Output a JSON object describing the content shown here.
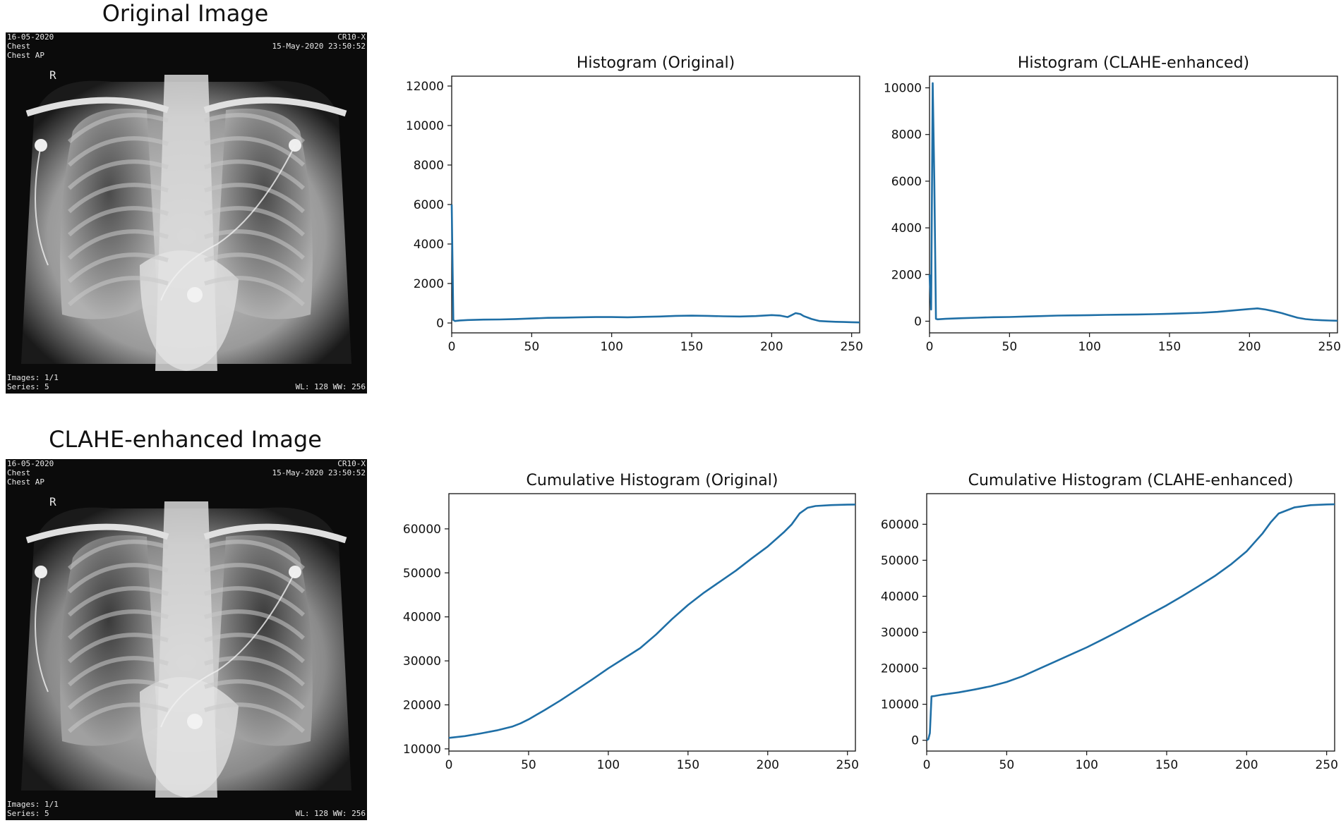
{
  "images": [
    {
      "title": "Original Image",
      "overlay": {
        "date": "16-05-2020",
        "study": "Chest",
        "view": "Chest AP",
        "device": "CR10-X",
        "datetime": "15-May-2020 23:50:52",
        "marker": "R",
        "images": "Images: 1/1",
        "series": "Series: 5",
        "window": "WL: 128 WW: 256"
      }
    },
    {
      "title": "CLAHE-enhanced Image",
      "overlay": {
        "date": "16-05-2020",
        "study": "Chest",
        "view": "Chest AP",
        "device": "CR10-X",
        "datetime": "15-May-2020 23:50:52",
        "marker": "R",
        "images": "Images: 1/1",
        "series": "Series: 5",
        "window": "WL: 128 WW: 256"
      }
    }
  ],
  "chart_data": [
    {
      "id": "hist-original",
      "type": "line",
      "title": "Histogram (Original)",
      "xlabel": "",
      "ylabel": "",
      "xlim": [
        0,
        255
      ],
      "ylim": [
        -500,
        12500
      ],
      "xticks": [
        0,
        50,
        100,
        150,
        200,
        250
      ],
      "yticks": [
        0,
        2000,
        4000,
        6000,
        8000,
        10000,
        12000
      ],
      "grid": false,
      "color": "#1f6fa6",
      "x": [
        0,
        1,
        2,
        5,
        10,
        20,
        30,
        40,
        50,
        60,
        70,
        80,
        90,
        100,
        110,
        120,
        130,
        140,
        150,
        160,
        170,
        180,
        190,
        200,
        205,
        210,
        212,
        215,
        218,
        220,
        225,
        230,
        235,
        240,
        245,
        250,
        255
      ],
      "y": [
        6000,
        150,
        100,
        130,
        150,
        170,
        180,
        200,
        230,
        260,
        270,
        290,
        300,
        300,
        290,
        310,
        330,
        360,
        370,
        360,
        340,
        330,
        350,
        400,
        380,
        300,
        380,
        500,
        450,
        350,
        200,
        100,
        80,
        60,
        50,
        40,
        30
      ]
    },
    {
      "id": "hist-clahe",
      "type": "line",
      "title": "Histogram (CLAHE-enhanced)",
      "xlabel": "",
      "ylabel": "",
      "xlim": [
        0,
        255
      ],
      "ylim": [
        -500,
        10500
      ],
      "xticks": [
        0,
        50,
        100,
        150,
        200,
        250
      ],
      "yticks": [
        0,
        2000,
        4000,
        6000,
        8000,
        10000
      ],
      "grid": false,
      "color": "#1f6fa6",
      "x": [
        0,
        1,
        2,
        3,
        4,
        5,
        10,
        20,
        30,
        40,
        50,
        60,
        70,
        80,
        90,
        100,
        110,
        120,
        130,
        140,
        150,
        160,
        170,
        180,
        190,
        200,
        205,
        210,
        215,
        220,
        225,
        230,
        235,
        240,
        245,
        250,
        255
      ],
      "y": [
        2000,
        500,
        10200,
        6000,
        100,
        80,
        100,
        130,
        150,
        170,
        180,
        200,
        220,
        240,
        250,
        260,
        270,
        280,
        290,
        300,
        320,
        340,
        360,
        400,
        460,
        520,
        550,
        500,
        430,
        350,
        250,
        150,
        90,
        60,
        40,
        30,
        20
      ]
    },
    {
      "id": "cum-original",
      "type": "line",
      "title": "Cumulative Histogram (Original)",
      "xlabel": "",
      "ylabel": "",
      "xlim": [
        0,
        255
      ],
      "ylim": [
        9500,
        68000
      ],
      "xticks": [
        0,
        50,
        100,
        150,
        200,
        250
      ],
      "yticks": [
        10000,
        20000,
        30000,
        40000,
        50000,
        60000
      ],
      "grid": false,
      "color": "#1f6fa6",
      "x": [
        0,
        10,
        20,
        30,
        40,
        45,
        50,
        60,
        70,
        80,
        90,
        100,
        110,
        120,
        130,
        140,
        150,
        160,
        170,
        180,
        190,
        200,
        210,
        215,
        220,
        225,
        230,
        240,
        250,
        255
      ],
      "y": [
        12500,
        12900,
        13500,
        14200,
        15100,
        15800,
        16700,
        18800,
        21000,
        23400,
        25800,
        28300,
        30600,
        32900,
        36000,
        39500,
        42700,
        45500,
        48000,
        50500,
        53300,
        56000,
        59200,
        61000,
        63500,
        64800,
        65200,
        65400,
        65500,
        65536
      ]
    },
    {
      "id": "cum-clahe",
      "type": "line",
      "title": "Cumulative Histogram (CLAHE-enhanced)",
      "xlabel": "",
      "ylabel": "",
      "xlim": [
        0,
        255
      ],
      "ylim": [
        -3000,
        68500
      ],
      "xticks": [
        0,
        50,
        100,
        150,
        200,
        250
      ],
      "yticks": [
        0,
        10000,
        20000,
        30000,
        40000,
        50000,
        60000
      ],
      "grid": false,
      "color": "#1f6fa6",
      "x": [
        0,
        1,
        2,
        3,
        5,
        10,
        20,
        30,
        40,
        50,
        60,
        70,
        80,
        90,
        100,
        110,
        120,
        130,
        140,
        150,
        160,
        170,
        180,
        190,
        200,
        210,
        215,
        220,
        230,
        240,
        250,
        255
      ],
      "y": [
        0,
        300,
        2000,
        12200,
        12300,
        12700,
        13300,
        14100,
        15000,
        16200,
        17800,
        19800,
        21800,
        23800,
        25800,
        28000,
        30300,
        32700,
        35100,
        37500,
        40100,
        42800,
        45600,
        48800,
        52500,
        57500,
        60500,
        63000,
        64700,
        65300,
        65500,
        65536
      ]
    }
  ]
}
